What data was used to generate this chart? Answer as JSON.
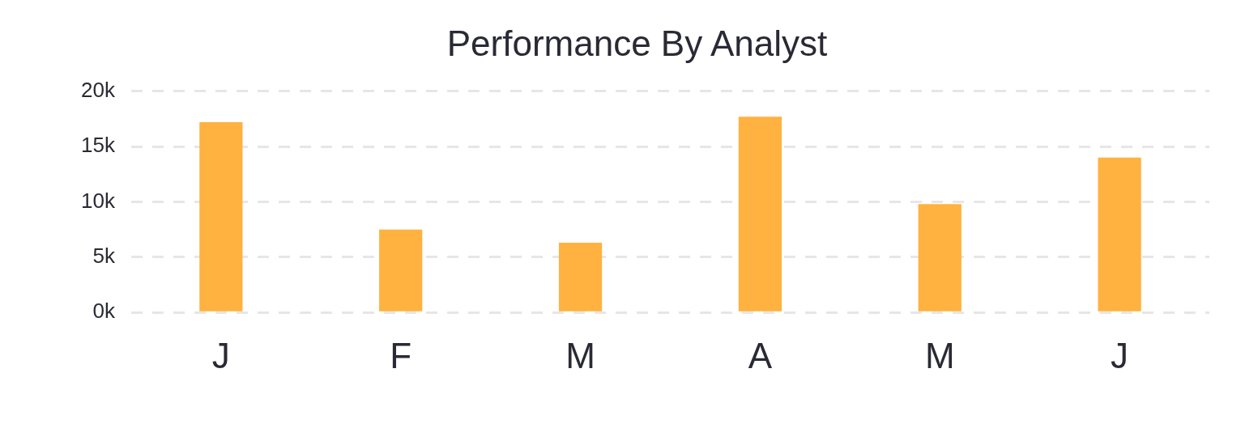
{
  "chart_data": {
    "type": "bar",
    "title": "Performance By Analyst",
    "categories": [
      "J",
      "F",
      "M",
      "A",
      "M",
      "J"
    ],
    "values": [
      17200,
      7500,
      6300,
      17700,
      9800,
      14000
    ],
    "color": "#ffb23f",
    "ylim": [
      0,
      20000
    ],
    "yticks": [
      {
        "value": 0,
        "label": "0k"
      },
      {
        "value": 5000,
        "label": "5k"
      },
      {
        "value": 10000,
        "label": "10k"
      },
      {
        "value": 15000,
        "label": "15k"
      },
      {
        "value": 20000,
        "label": "20k"
      }
    ],
    "grid": "y",
    "legend": false
  }
}
